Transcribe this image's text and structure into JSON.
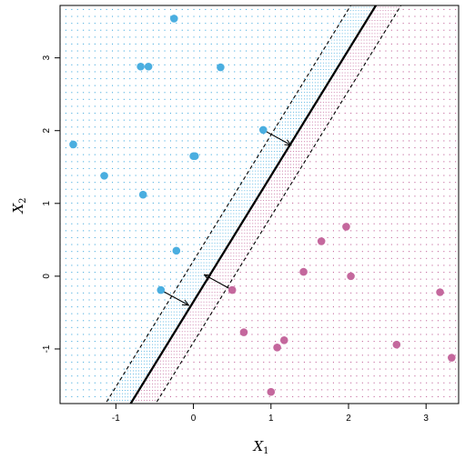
{
  "chart_data": {
    "type": "scatter",
    "title": "",
    "xlabel": "X",
    "xlabel_sub": "1",
    "ylabel": "X",
    "ylabel_sub": "2",
    "xlim": [
      -1.72,
      3.42
    ],
    "ylim": [
      -1.75,
      3.72
    ],
    "x_ticks": [
      -1,
      0,
      1,
      2,
      3
    ],
    "y_ticks": [
      -1,
      0,
      1,
      2,
      3
    ],
    "grid": false,
    "colors": {
      "class_a": "#4aaee0",
      "class_b": "#c4689d",
      "line": "#000000"
    },
    "series": [
      {
        "color": "#4aaee0",
        "points": [
          [
            -0.25,
            3.54
          ],
          [
            -0.68,
            2.88
          ],
          [
            -0.58,
            2.88
          ],
          [
            0.35,
            2.87
          ],
          [
            -1.55,
            1.81
          ],
          [
            0.9,
            2.01
          ],
          [
            -1.15,
            1.38
          ],
          [
            0.0,
            1.65
          ],
          [
            0.02,
            1.65
          ],
          [
            -0.65,
            1.12
          ],
          [
            -0.22,
            0.35
          ],
          [
            -0.42,
            -0.19
          ]
        ]
      },
      {
        "color": "#c4689d",
        "points": [
          [
            1.97,
            0.68
          ],
          [
            1.65,
            0.48
          ],
          [
            1.42,
            0.06
          ],
          [
            2.03,
            0.0
          ],
          [
            0.5,
            -0.19
          ],
          [
            3.18,
            -0.22
          ],
          [
            0.65,
            -0.77
          ],
          [
            1.17,
            -0.88
          ],
          [
            1.08,
            -0.98
          ],
          [
            2.62,
            -0.94
          ],
          [
            3.33,
            -1.12
          ],
          [
            1.0,
            -1.59
          ]
        ]
      }
    ],
    "hyperplane": {
      "slope": 1.73,
      "intercept": -0.35
    },
    "margin_offset": 0.56,
    "support_arrows": [
      {
        "from": [
          0.9,
          2.01
        ],
        "to": [
          1.26,
          1.8
        ]
      },
      {
        "from": [
          -0.42,
          -0.19
        ],
        "to": [
          -0.06,
          -0.4
        ]
      },
      {
        "from": [
          0.5,
          -0.19
        ],
        "to": [
          0.14,
          0.02
        ]
      }
    ]
  }
}
